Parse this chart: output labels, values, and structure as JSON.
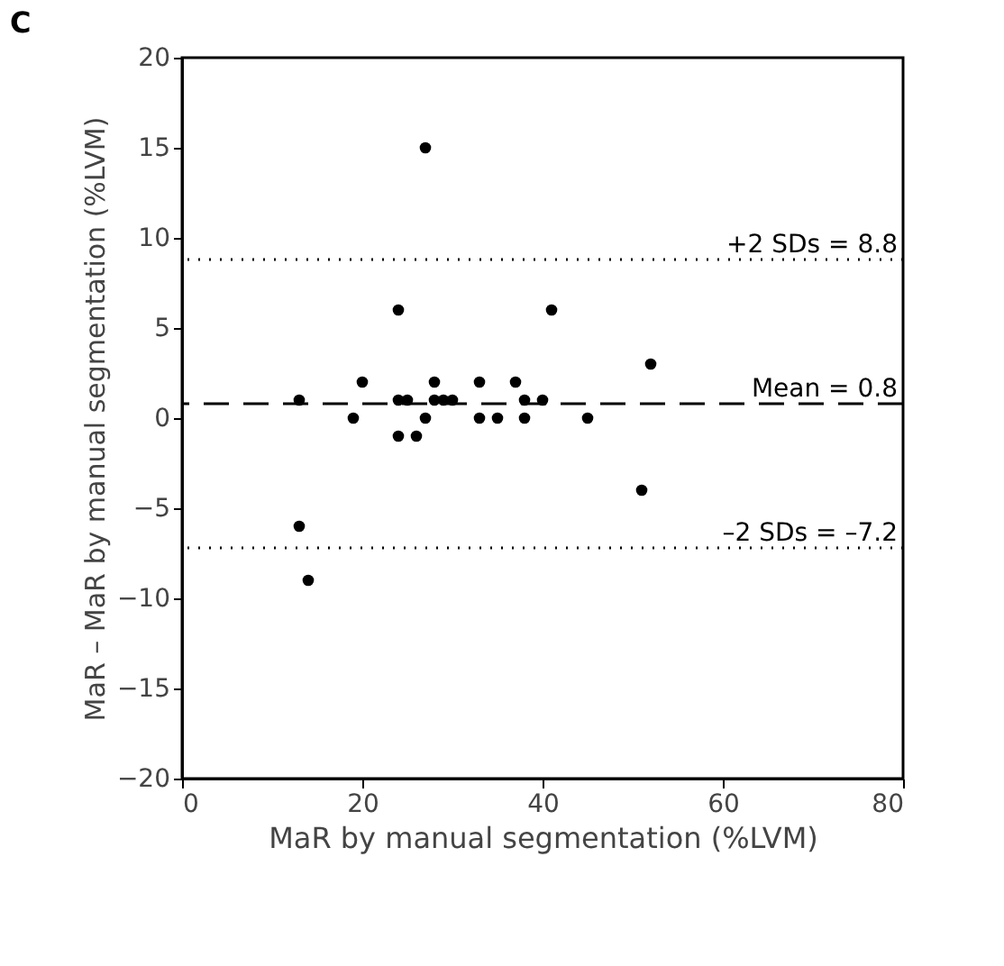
{
  "chart_data": {
    "type": "scatter",
    "title": "C",
    "xlabel": "MaR by manual segmentation (%LVM)",
    "ylabel": "MaR – MaR by manual segmentation (%LVM)",
    "x": [
      13,
      13,
      14,
      19,
      20,
      24,
      24,
      25,
      24,
      26,
      27,
      27,
      28,
      28,
      29,
      30,
      33,
      33,
      35,
      37,
      38,
      38,
      40,
      41,
      45,
      51,
      52
    ],
    "values": [
      1,
      -6,
      -9,
      0,
      2,
      6,
      1,
      1,
      -1,
      -1,
      15,
      0,
      2,
      1,
      1,
      1,
      2,
      0,
      0,
      2,
      1,
      0,
      1,
      6,
      0,
      -4,
      3
    ],
    "color": "#000000",
    "marker": "circle",
    "grid": false,
    "xlim": [
      0,
      80
    ],
    "xticks": [
      0,
      20,
      40,
      60,
      80
    ],
    "ylim": [
      -20,
      20
    ],
    "yticks": [
      -20,
      -15,
      -10,
      -5,
      0,
      5,
      10,
      15,
      20
    ],
    "ref_lines": [
      {
        "axis": "y",
        "value": 8.8,
        "label": "+2 SDs = 8.8",
        "line_style": "dotted",
        "color": "#000000"
      },
      {
        "axis": "y",
        "value": 0.8,
        "label": "Mean = 0.8",
        "line_style": "dashed",
        "color": "#000000"
      },
      {
        "axis": "y",
        "value": -7.2,
        "label": "–2 SDs = –7.2",
        "line_style": "dotted",
        "color": "#000000"
      }
    ]
  }
}
